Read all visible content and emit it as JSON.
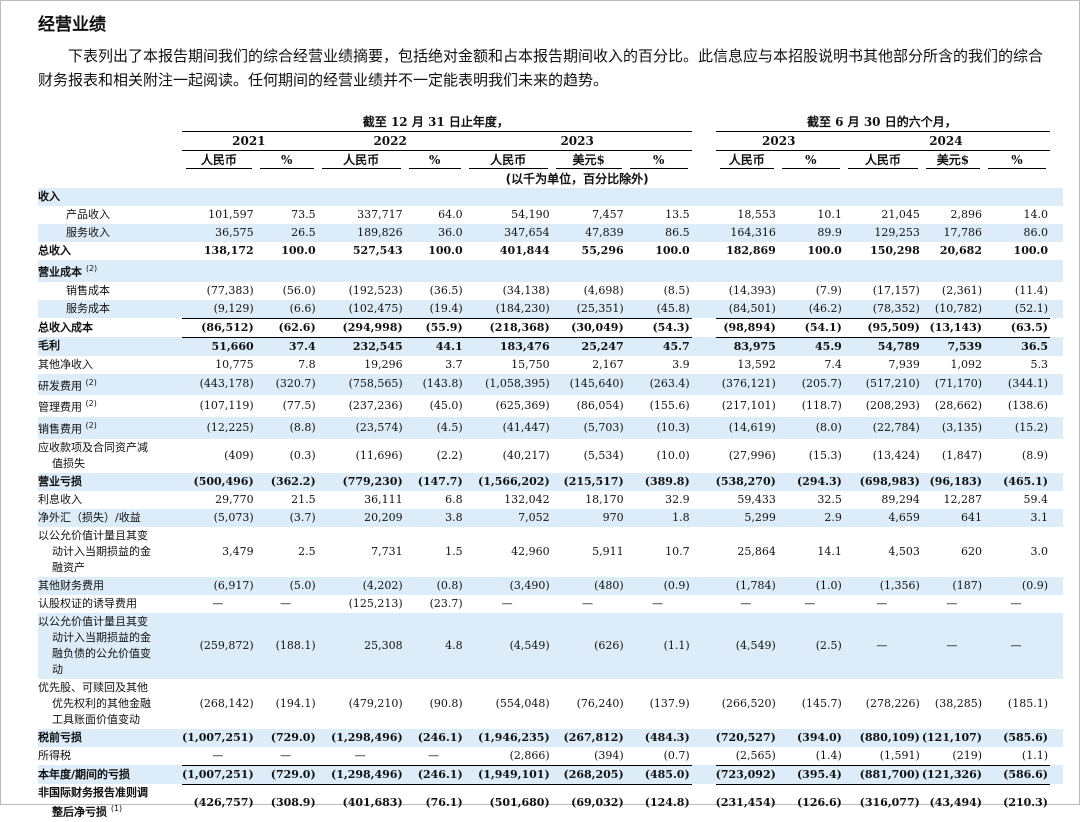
{
  "header": {
    "title": "经营业绩",
    "intro": "下表列出了本报告期间我们的综合经营业绩摘要，包括绝对金额和占本报告期间收入的百分比。此信息应与本招股说明书其他部分所含的我们的综合财务报表和相关附注一起阅读。任何期间的经营业绩并不一定能表明我们未来的趋势。"
  },
  "table": {
    "period_groups": [
      "截至 12 月 31 日止年度，",
      "截至 6 月 30 日的六个月，"
    ],
    "years": [
      "2021",
      "2022",
      "2023",
      "2023",
      "2024"
    ],
    "currency_headers": [
      [
        "人民币",
        "%"
      ],
      [
        "人民币",
        "%"
      ],
      [
        "人民币",
        "美元$",
        "%"
      ],
      [
        "人民币",
        "%"
      ],
      [
        "人民币",
        "美元$",
        "%"
      ]
    ],
    "unit_note": "(以千为单位，百分比除外)",
    "rows": [
      {
        "label": "收入"
      },
      {
        "label": "产品收入",
        "values": [
          "101,597",
          "73.5",
          "337,717",
          "64.0",
          "54,190",
          "7,457",
          "13.5",
          "18,553",
          "10.1",
          "21,045",
          "2,896",
          "14.0"
        ]
      },
      {
        "label": "服务收入",
        "values": [
          "36,575",
          "26.5",
          "189,826",
          "36.0",
          "347,654",
          "47,839",
          "86.5",
          "164,316",
          "89.9",
          "129,253",
          "17,786",
          "86.0"
        ]
      },
      {
        "label": "总收入",
        "values": [
          "138,172",
          "100.0",
          "527,543",
          "100.0",
          "401,844",
          "55,296",
          "100.0",
          "182,869",
          "100.0",
          "150,298",
          "20,682",
          "100.0"
        ]
      },
      {
        "label": "营业成本",
        "note": "(2)"
      },
      {
        "label": "销售成本",
        "values": [
          "(77,383)",
          "(56.0)",
          "(192,523)",
          "(36.5)",
          "(34,138)",
          "(4,698)",
          "(8.5)",
          "(14,393)",
          "(7.9)",
          "(17,157)",
          "(2,361)",
          "(11.4)"
        ]
      },
      {
        "label": "服务成本",
        "values": [
          "(9,129)",
          "(6.6)",
          "(102,475)",
          "(19.4)",
          "(184,230)",
          "(25,351)",
          "(45.8)",
          "(84,501)",
          "(46.2)",
          "(78,352)",
          "(10,782)",
          "(52.1)"
        ]
      },
      {
        "label": "总收入成本",
        "values": [
          "(86,512)",
          "(62.6)",
          "(294,998)",
          "(55.9)",
          "(218,368)",
          "(30,049)",
          "(54.3)",
          "(98,894)",
          "(54.1)",
          "(95,509)",
          "(13,143)",
          "(63.5)"
        ]
      },
      {
        "label": "毛利",
        "values": [
          "51,660",
          "37.4",
          "232,545",
          "44.1",
          "183,476",
          "25,247",
          "45.7",
          "83,975",
          "45.9",
          "54,789",
          "7,539",
          "36.5"
        ]
      },
      {
        "label": "其他净收入",
        "values": [
          "10,775",
          "7.8",
          "19,296",
          "3.7",
          "15,750",
          "2,167",
          "3.9",
          "13,592",
          "7.4",
          "7,939",
          "1,092",
          "5.3"
        ]
      },
      {
        "label": "研发费用",
        "note": "(2)",
        "values": [
          "(443,178)",
          "(320.7)",
          "(758,565)",
          "(143.8)",
          "(1,058,395)",
          "(145,640)",
          "(263.4)",
          "(376,121)",
          "(205.7)",
          "(517,210)",
          "(71,170)",
          "(344.1)"
        ]
      },
      {
        "label": "管理费用",
        "note": "(2)",
        "values": [
          "(107,119)",
          "(77.5)",
          "(237,236)",
          "(45.0)",
          "(625,369)",
          "(86,054)",
          "(155.6)",
          "(217,101)",
          "(118.7)",
          "(208,293)",
          "(28,662)",
          "(138.6)"
        ]
      },
      {
        "label": "销售费用",
        "note": "(2)",
        "values": [
          "(12,225)",
          "(8.8)",
          "(23,574)",
          "(4.5)",
          "(41,447)",
          "(5,703)",
          "(10.3)",
          "(14,619)",
          "(8.0)",
          "(22,784)",
          "(3,135)",
          "(15.2)"
        ]
      },
      {
        "label": "应收款项及合同资产减\n值损失",
        "values": [
          "(409)",
          "(0.3)",
          "(11,696)",
          "(2.2)",
          "(40,217)",
          "(5,534)",
          "(10.0)",
          "(27,996)",
          "(15.3)",
          "(13,424)",
          "(1,847)",
          "(8.9)"
        ]
      },
      {
        "label": "营业亏损",
        "values": [
          "(500,496)",
          "(362.2)",
          "(779,230)",
          "(147.7)",
          "(1,566,202)",
          "(215,517)",
          "(389.8)",
          "(538,270)",
          "(294.3)",
          "(698,983)",
          "(96,183)",
          "(465.1)"
        ]
      },
      {
        "label": "利息收入",
        "values": [
          "29,770",
          "21.5",
          "36,111",
          "6.8",
          "132,042",
          "18,170",
          "32.9",
          "59,433",
          "32.5",
          "89,294",
          "12,287",
          "59.4"
        ]
      },
      {
        "label": "净外汇（损失）/收益",
        "values": [
          "(5,073)",
          "(3.7)",
          "20,209",
          "3.8",
          "7,052",
          "970",
          "1.8",
          "5,299",
          "2.9",
          "4,659",
          "641",
          "3.1"
        ]
      },
      {
        "label": "以公允价值计量且其变\n动计入当期损益的金\n融资产",
        "values": [
          "3,479",
          "2.5",
          "7,731",
          "1.5",
          "42,960",
          "5,911",
          "10.7",
          "25,864",
          "14.1",
          "4,503",
          "620",
          "3.0"
        ]
      },
      {
        "label": "其他财务费用",
        "values": [
          "(6,917)",
          "(5.0)",
          "(4,202)",
          "(0.8)",
          "(3,490)",
          "(480)",
          "(0.9)",
          "(1,784)",
          "(1.0)",
          "(1,356)",
          "(187)",
          "(0.9)"
        ]
      },
      {
        "label": "认股权证的诱导费用",
        "values": [
          "—",
          "—",
          "(125,213)",
          "(23.7)",
          "—",
          "—",
          "—",
          "—",
          "—",
          "—",
          "—",
          "—"
        ]
      },
      {
        "label": "以公允价值计量且其变\n动计入当期损益的金\n融负债的公允价值变\n动",
        "values": [
          "(259,872)",
          "(188.1)",
          "25,308",
          "4.8",
          "(4,549)",
          "(626)",
          "(1.1)",
          "(4,549)",
          "(2.5)",
          "—",
          "—",
          "—"
        ]
      },
      {
        "label": "优先股、可赎回及其他\n优先权利的其他金融\n工具账面价值变动",
        "values": [
          "(268,142)",
          "(194.1)",
          "(479,210)",
          "(90.8)",
          "(554,048)",
          "(76,240)",
          "(137.9)",
          "(266,520)",
          "(145.7)",
          "(278,226)",
          "(38,285)",
          "(185.1)"
        ]
      },
      {
        "label": "税前亏损",
        "values": [
          "(1,007,251)",
          "(729.0)",
          "(1,298,496)",
          "(246.1)",
          "(1,946,235)",
          "(267,812)",
          "(484.3)",
          "(720,527)",
          "(394.0)",
          "(880,109)",
          "(121,107)",
          "(585.6)"
        ]
      },
      {
        "label": "所得税",
        "values": [
          "—",
          "—",
          "—",
          "—",
          "(2,866)",
          "(394)",
          "(0.7)",
          "(2,565)",
          "(1.4)",
          "(1,591)",
          "(219)",
          "(1.1)"
        ]
      },
      {
        "label": "本年度/期间的亏损",
        "values": [
          "(1,007,251)",
          "(729.0)",
          "(1,298,496)",
          "(246.1)",
          "(1,949,101)",
          "(268,205)",
          "(485.0)",
          "(723,092)",
          "(395.4)",
          "(881,700)",
          "(121,326)",
          "(586.6)"
        ]
      },
      {
        "label": "非国际财务报告准则调\n整后净亏损",
        "note": "(1)",
        "values": [
          "(426,757)",
          "(308.9)",
          "(401,683)",
          "(76.1)",
          "(501,680)",
          "(69,032)",
          "(124.8)",
          "(231,454)",
          "(126.6)",
          "(316,077)",
          "(43,494)",
          "(210.3)"
        ]
      }
    ]
  }
}
